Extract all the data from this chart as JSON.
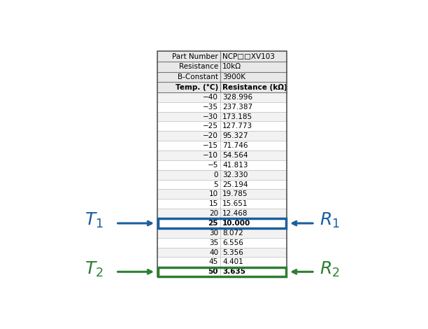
{
  "part_number_label": "Part Number",
  "part_number_value": "NCP□□XV103",
  "resistance_label": "Resistance",
  "resistance_value": "10kΩ",
  "bconstant_label": "B-Constant",
  "bconstant_value": "3900K",
  "col1_header": "Temp. (°C)",
  "col2_header": "Resistance (kΩ)",
  "temperatures": [
    "−40",
    "−35",
    "−30",
    "−25",
    "−20",
    "−15",
    "−10",
    "−5",
    "0",
    "5",
    "10",
    "15",
    "20",
    "25",
    "30",
    "35",
    "40",
    "45",
    "50"
  ],
  "resistances": [
    "328.996",
    "237.387",
    "173.185",
    "127.773",
    "95.327",
    "71.746",
    "54.564",
    "41.813",
    "32.330",
    "25.194",
    "19.785",
    "15.651",
    "12.468",
    "10.000",
    "8.072",
    "6.556",
    "5.356",
    "4.401",
    "3.635"
  ],
  "highlight_blue_row": 13,
  "highlight_green_row": 18,
  "blue_color": "#1a5f9e",
  "green_color": "#2e7d32",
  "T1_label": "$T_1$",
  "R1_label": "$R_1$",
  "T2_label": "$T_2$",
  "R2_label": "$R_2$",
  "bg_color": "#ffffff",
  "table_line_color": "#aaaaaa"
}
